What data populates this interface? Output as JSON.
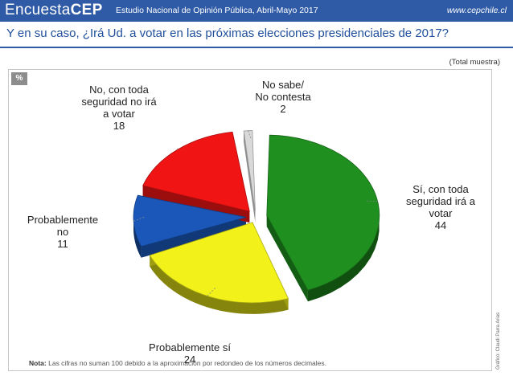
{
  "header": {
    "brand_light": "Encuesta",
    "brand_bold": "CEP",
    "study": "Estudio Nacional de Opinión Pública, Abril-Mayo 2017",
    "site": "www.cepchile.cl"
  },
  "question": "Y en su caso, ¿Irá Ud. a votar en las próximas elecciones presidenciales de 2017?",
  "sample_note": "(Total muestra)",
  "unit_badge": "%",
  "footnote": {
    "label": "Nota:",
    "text": "Las cifras no suman 100 debido a la aproximación por redondeo de los números decimales."
  },
  "credit": "Gráfico: Claudi Parra Arias",
  "colors": {
    "header_bg": "#2e5aa6",
    "title_text": "#1f4f9c",
    "green": "#1f8f1f",
    "yellow": "#f2f21a",
    "blue": "#1a57b8",
    "red": "#f01414",
    "gray": "#d9d9d9"
  },
  "chart_data": {
    "type": "pie",
    "title": "",
    "slices": [
      {
        "label_lines": [
          "Sí, con toda",
          "seguridad irá a",
          "votar"
        ],
        "value": 44,
        "color": "#1f8f1f"
      },
      {
        "label_lines": [
          "Probablemente sí"
        ],
        "value": 24,
        "color": "#f2f21a"
      },
      {
        "label_lines": [
          "Probablemente",
          "no"
        ],
        "value": 11,
        "color": "#1a57b8"
      },
      {
        "label_lines": [
          "No, con toda",
          "seguridad no irá",
          "a votar"
        ],
        "value": 18,
        "color": "#f01414"
      },
      {
        "label_lines": [
          "No sabe/",
          "No contesta"
        ],
        "value": 2,
        "color": "#d9d9d9"
      }
    ],
    "legend": "none",
    "exploded": true,
    "three_d": true
  }
}
